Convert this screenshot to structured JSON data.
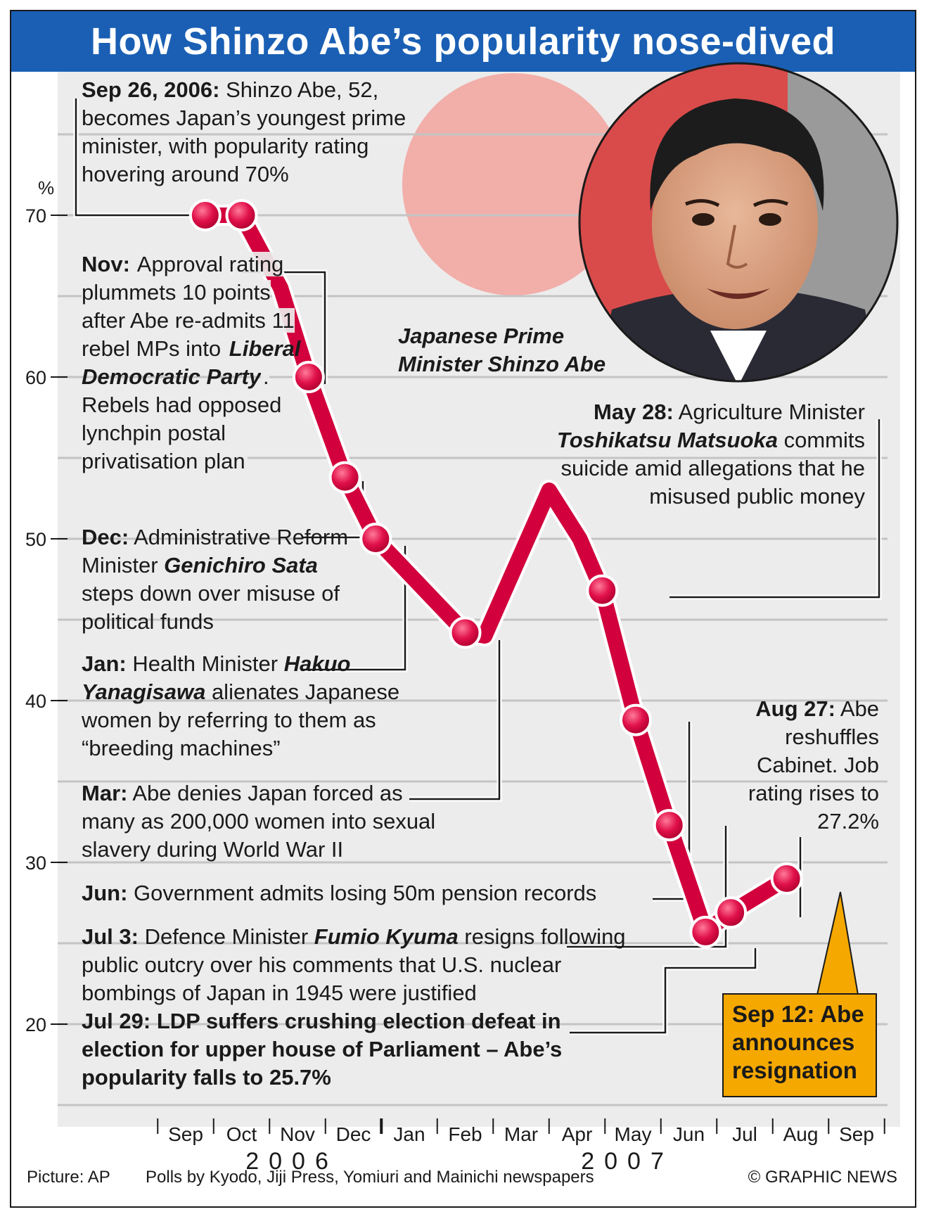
{
  "title": "How Shinzo Abe’s popularity nose-dived",
  "chart_data": {
    "type": "line",
    "title": "How Shinzo Abe’s popularity nose-dived",
    "xlabel": "",
    "ylabel": "%",
    "y_ticks": [
      "70",
      "60",
      "50",
      "40",
      "30",
      "20"
    ],
    "ylim": [
      15,
      77
    ],
    "x_months": [
      "Sep",
      "Oct",
      "Nov",
      "Dec",
      "Jan",
      "Feb",
      "Mar",
      "Apr",
      "May",
      "Jun",
      "Jul",
      "Aug",
      "Sep"
    ],
    "x_years": [
      {
        "label": "2006"
      },
      {
        "label": "2007"
      }
    ],
    "series": [
      {
        "line_color": "#d2003c",
        "points": [
          {
            "x": 0.35,
            "y": 70.0,
            "marker": true
          },
          {
            "x": 1.0,
            "y": 70.0,
            "marker": true
          },
          {
            "x": 1.7,
            "y": 65.5,
            "marker": false
          },
          {
            "x": 2.2,
            "y": 60.0,
            "marker": true
          },
          {
            "x": 2.85,
            "y": 53.8,
            "marker": true
          },
          {
            "x": 3.4,
            "y": 50.0,
            "marker": true
          },
          {
            "x": 5.0,
            "y": 44.2,
            "marker": true
          },
          {
            "x": 5.35,
            "y": 44.0,
            "marker": false
          },
          {
            "x": 6.5,
            "y": 53.0,
            "marker": false
          },
          {
            "x": 7.05,
            "y": 50.0,
            "marker": false
          },
          {
            "x": 7.45,
            "y": 46.8,
            "marker": true
          },
          {
            "x": 8.05,
            "y": 38.8,
            "marker": true
          },
          {
            "x": 8.65,
            "y": 32.3,
            "marker": true
          },
          {
            "x": 9.3,
            "y": 25.7,
            "marker": true
          },
          {
            "x": 9.75,
            "y": 26.9,
            "marker": true
          },
          {
            "x": 10.75,
            "y": 29.0,
            "marker": true
          }
        ]
      }
    ]
  },
  "annotations": {
    "sep26": {
      "date": "Sep 26, 2006:",
      "text": " Shinzo Abe, 52, becomes Japan’s youngest prime minister, with popularity rating hovering around 70%"
    },
    "nov": {
      "date": "Nov:",
      "t1": " Approval rating plummets 10 points after Abe re-admits 11 rebel MPs into ",
      "party": "Liberal Democratic Party",
      "t2": ". Rebels had opposed lynchpin postal privatisation plan"
    },
    "dec": {
      "date": "Dec:",
      "t1": " Administrative Reform Minister ",
      "name": "Genichiro Sata",
      "t2": " steps down over misuse of political funds"
    },
    "jan": {
      "date": "Jan:",
      "t1": " Health Minister ",
      "name": "Hakuo Yanagisawa",
      "t2": " alienates Japanese women by referring to them as “breeding machines”"
    },
    "mar": {
      "date": "Mar:",
      "text": " Abe denies Japan forced as many as 200,000 women into sexual slavery during World War II"
    },
    "may28": {
      "date": "May 28:",
      "t1": " Agriculture Minister ",
      "name": "Toshikatsu Matsuoka",
      "t2": " commits suicide amid allegations that he misused public money"
    },
    "jun": {
      "date": "Jun:",
      "text": " Government admits losing 50m pension records"
    },
    "jul3": {
      "date": "Jul 3:",
      "t1": " Defence Minister ",
      "name": "Fumio Kyuma",
      "t2": " resigns following public outcry over his comments that U.S. nuclear bombings of Japan in 1945 were justified"
    },
    "jul29": {
      "text": "Jul 29: LDP suffers crushing election defeat in election for upper house of Parliament – Abe’s popularity falls to 25.7%"
    },
    "aug27": {
      "date": "Aug 27:",
      "text": " Abe reshuffles Cabinet. Job rating rises to 27.2%"
    },
    "sep12": {
      "text": "Sep 12: Abe announces resignation"
    }
  },
  "photo_caption": "Japanese Prime Minister Shinzo Abe",
  "footer": {
    "picture_credit": "Picture: AP",
    "polls_credit": "Polls by Kyodo, Jiji Press, Yomiuri and Mainichi newspapers",
    "copyright": "© GRAPHIC NEWS"
  },
  "colors": {
    "title_bar": "#1a5fb4",
    "line": "#d2003c",
    "callout": "#f5a800",
    "plot_bg": "#ececec",
    "rising_sun": "#f3a39d"
  }
}
